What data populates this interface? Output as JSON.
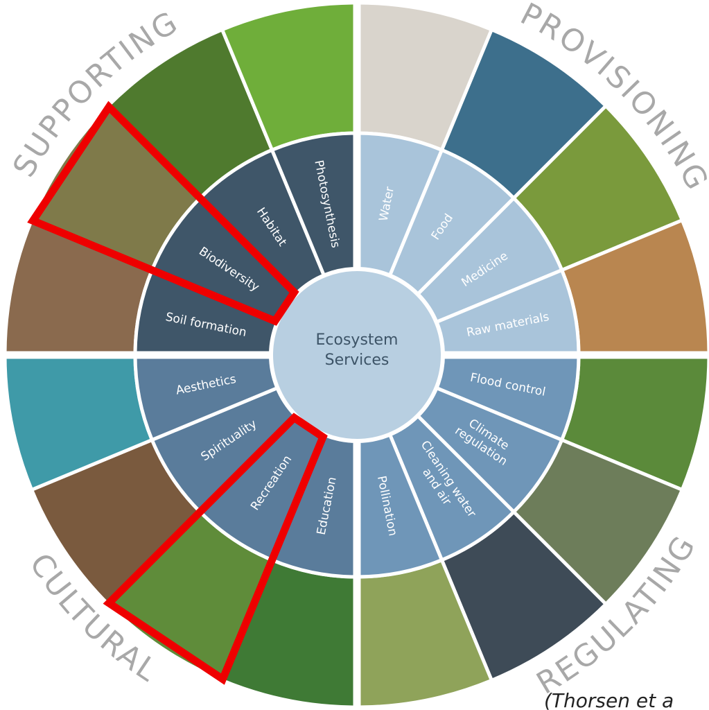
{
  "center": {
    "lines": [
      "Ecosystem",
      "Services"
    ]
  },
  "quadrants": [
    {
      "title": "PROVISIONING",
      "services": [
        [
          "Water"
        ],
        [
          "Food"
        ],
        [
          "Medicine"
        ],
        [
          "Raw materials"
        ]
      ]
    },
    {
      "title": "REGULATING",
      "services": [
        [
          "Flood control"
        ],
        [
          "Climate",
          "regulation"
        ],
        [
          "Cleaning water",
          "and air"
        ],
        [
          "Pollination"
        ]
      ]
    },
    {
      "title": "CULTURAL",
      "services": [
        [
          "Education"
        ],
        [
          "Recreation"
        ],
        [
          "Spirituality"
        ],
        [
          "Aesthetics"
        ]
      ]
    },
    {
      "title": "SUPPORTING",
      "services": [
        [
          "Soil formation"
        ],
        [
          "Biodiversity"
        ],
        [
          "Habitat"
        ],
        [
          "Photosynthesis"
        ]
      ]
    }
  ],
  "citation": "(Thorsen et a"
}
